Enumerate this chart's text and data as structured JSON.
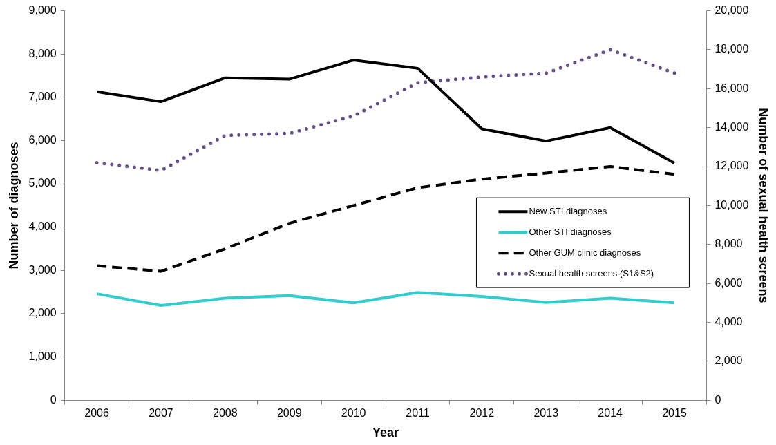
{
  "chart_data": {
    "type": "line",
    "xlabel": "Year",
    "ylabel": "Number of diagnoses",
    "y2label": "Number of sexual health screens",
    "categories": [
      "2006",
      "2007",
      "2008",
      "2009",
      "2010",
      "2011",
      "2012",
      "2013",
      "2014",
      "2015"
    ],
    "series": [
      {
        "name": "New STI diagnoses",
        "color": "#000000",
        "line_style": "solid",
        "values": [
          7130,
          6900,
          7450,
          7420,
          7860,
          7670,
          6270,
          5990,
          6300,
          5480
        ]
      },
      {
        "name": "Other STI diagnoses",
        "color": "#33cccc",
        "line_style": "solid",
        "values": [
          2460,
          2190,
          2360,
          2420,
          2250,
          2490,
          2400,
          2260,
          2360,
          2250
        ]
      },
      {
        "name": "Other GUM clinic diagnoses",
        "color": "#000000",
        "line_style": "dashed",
        "values": [
          3110,
          2980,
          3500,
          4090,
          4500,
          4910,
          5110,
          5250,
          5400,
          5220
        ]
      },
      {
        "name": "Sexual health screens (S1&S2)",
        "color": "#674e88",
        "line_style": "dotted",
        "axis": "y2",
        "values": [
          12200,
          11800,
          13600,
          13700,
          14600,
          16300,
          16600,
          16800,
          18000,
          16800
        ]
      }
    ],
    "ylim": [
      0,
      9000
    ],
    "yticks": [
      {
        "value": 0,
        "label": "0"
      },
      {
        "value": 1000,
        "label": "1,000"
      },
      {
        "value": 2000,
        "label": "2,000"
      },
      {
        "value": 3000,
        "label": "3,000"
      },
      {
        "value": 4000,
        "label": "4,000"
      },
      {
        "value": 5000,
        "label": "5,000"
      },
      {
        "value": 6000,
        "label": "6,000"
      },
      {
        "value": 7000,
        "label": "7,000"
      },
      {
        "value": 8000,
        "label": "8,000"
      },
      {
        "value": 9000,
        "label": "9,000"
      }
    ],
    "y2lim": [
      0,
      20000
    ],
    "y2ticks": [
      {
        "value": 0,
        "label": "0"
      },
      {
        "value": 2000,
        "label": "2,000"
      },
      {
        "value": 4000,
        "label": "4,000"
      },
      {
        "value": 6000,
        "label": "6,000"
      },
      {
        "value": 8000,
        "label": "8,000"
      },
      {
        "value": 10000,
        "label": "10,000"
      },
      {
        "value": 12000,
        "label": "12,000"
      },
      {
        "value": 14000,
        "label": "14,000"
      },
      {
        "value": 16000,
        "label": "16,000"
      },
      {
        "value": 18000,
        "label": "18,000"
      },
      {
        "value": 20000,
        "label": "20,000"
      }
    ],
    "grid": false,
    "legend": "right",
    "marker": "none"
  }
}
